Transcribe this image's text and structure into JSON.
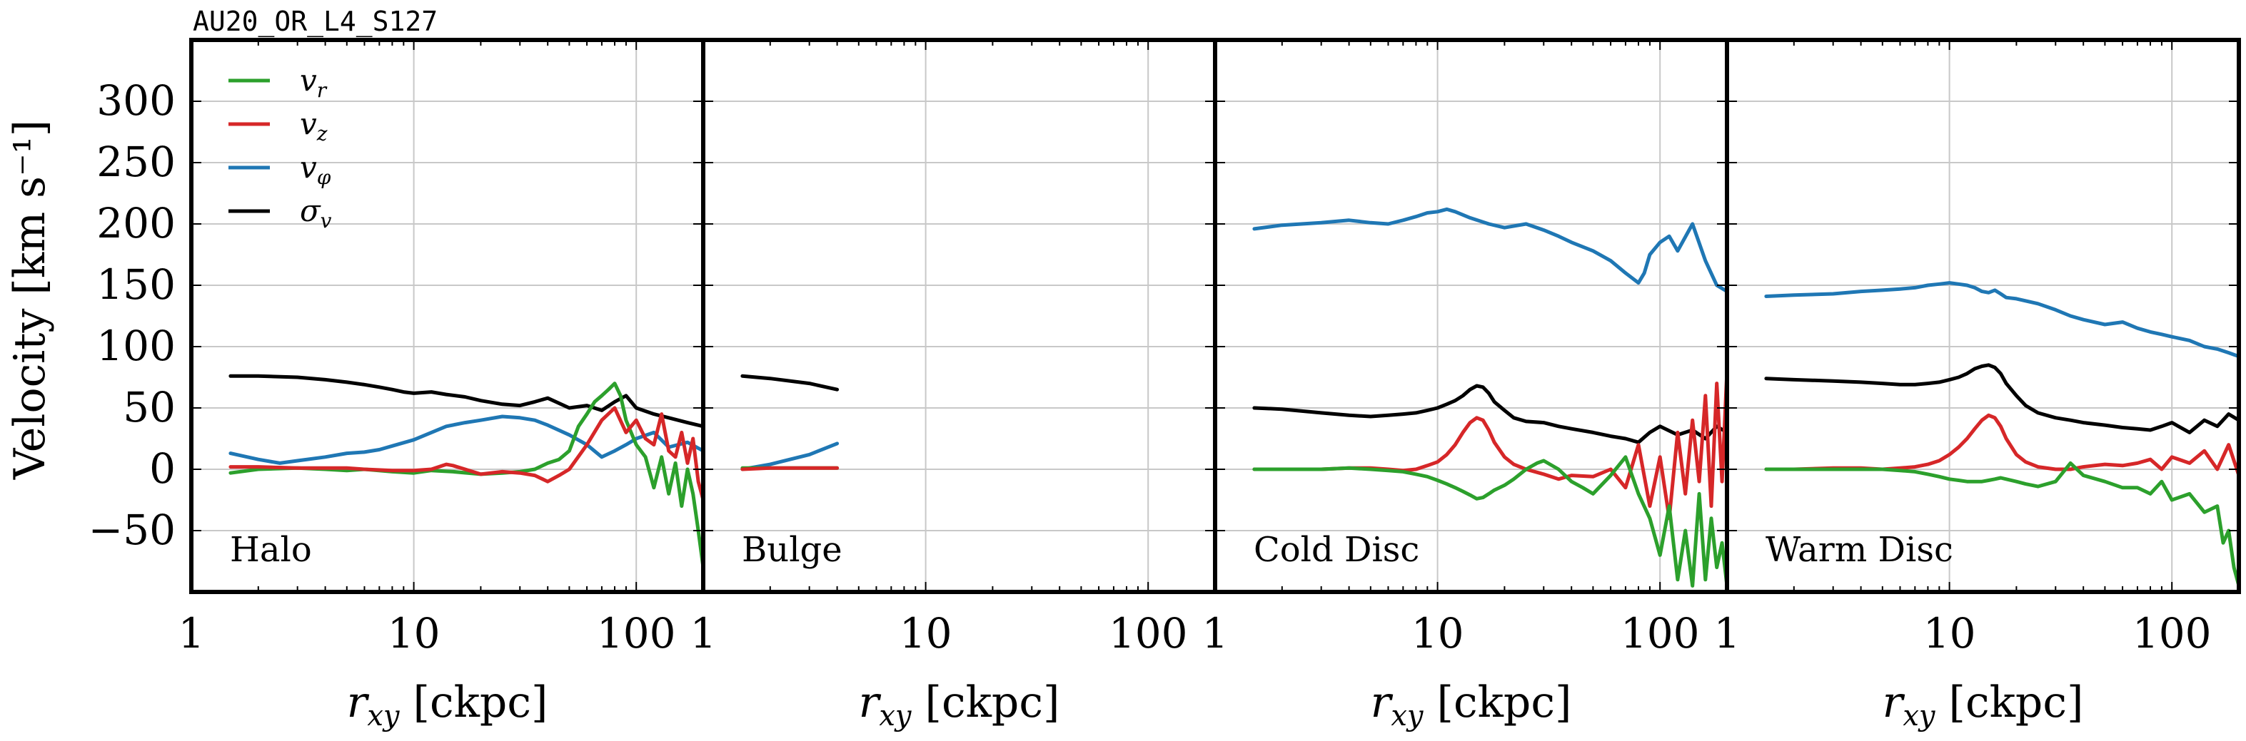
{
  "title": "AU20_OR_L4_S127",
  "colors": {
    "v_r": "#2ca02c",
    "v_z": "#d62728",
    "v_phi": "#1f77b4",
    "sigma_v": "#000000",
    "grid": "#c8c8c8"
  },
  "legend": [
    {
      "key": "v_r",
      "label": "v",
      "sub": "r"
    },
    {
      "key": "v_z",
      "label": "v",
      "sub": "z"
    },
    {
      "key": "v_phi",
      "label": "v",
      "sub": "φ"
    },
    {
      "key": "sigma_v",
      "label": "σ",
      "sub": "v"
    }
  ],
  "chart_data": {
    "type": "line",
    "ylabel": "Velocity [km s⁻¹]",
    "ylim": [
      -100,
      350
    ],
    "yticks": [
      -50,
      0,
      50,
      100,
      150,
      200,
      250,
      300
    ],
    "ytick_labels": [
      "−50",
      "0",
      "50",
      "100",
      "150",
      "200",
      "250",
      "300"
    ],
    "xscale": "log",
    "xlabel": "r_xy [ckpc]",
    "xlabel_main": "r",
    "xlabel_sub": "xy",
    "xlabel_unit": "[ckpc]",
    "grid": true,
    "legend_position": "top-left",
    "panels": [
      {
        "label": "Halo",
        "xlim": [
          1,
          200
        ],
        "xticks": [
          1,
          10,
          100
        ],
        "xtick_labels": [
          "1",
          "10",
          "100"
        ],
        "series": [
          {
            "key": "sigma_v",
            "x": [
              1.5,
              2,
              3,
              4,
              5,
              6,
              7,
              8,
              9,
              10,
              12,
              14,
              17,
              20,
              25,
              30,
              35,
              40,
              50,
              60,
              70,
              80,
              90,
              100,
              120,
              140,
              170,
              200
            ],
            "y": [
              76,
              76,
              75,
              73,
              71,
              69,
              67,
              65,
              63,
              62,
              63,
              61,
              59,
              56,
              53,
              52,
              55,
              58,
              50,
              52,
              48,
              55,
              60,
              50,
              45,
              42,
              38,
              35
            ]
          },
          {
            "key": "v_phi",
            "x": [
              1.5,
              2,
              2.5,
              3,
              4,
              5,
              6,
              7,
              8,
              10,
              12,
              14,
              17,
              20,
              25,
              30,
              35,
              40,
              50,
              60,
              70,
              80,
              90,
              100,
              120,
              140,
              170,
              200
            ],
            "y": [
              13,
              8,
              5,
              7,
              10,
              13,
              14,
              16,
              19,
              24,
              30,
              35,
              38,
              40,
              43,
              42,
              40,
              36,
              28,
              20,
              10,
              15,
              20,
              25,
              30,
              18,
              22,
              15
            ]
          },
          {
            "key": "v_r",
            "x": [
              1.5,
              2,
              3,
              4,
              5,
              6,
              8,
              10,
              12,
              15,
              20,
              25,
              30,
              35,
              40,
              45,
              50,
              55,
              60,
              65,
              70,
              75,
              80,
              85,
              90,
              100,
              110,
              120,
              130,
              140,
              150,
              160,
              170,
              180,
              190,
              200
            ],
            "y": [
              -3,
              0,
              1,
              0,
              -1,
              0,
              -2,
              -3,
              -1,
              -2,
              -4,
              -3,
              -2,
              0,
              5,
              8,
              15,
              35,
              45,
              55,
              60,
              65,
              70,
              60,
              40,
              20,
              10,
              -15,
              10,
              -20,
              5,
              -30,
              0,
              -20,
              -50,
              -80
            ]
          },
          {
            "key": "v_z",
            "x": [
              1.5,
              2,
              3,
              4,
              5,
              6,
              8,
              10,
              12,
              14,
              15,
              17,
              20,
              25,
              30,
              35,
              40,
              45,
              50,
              60,
              70,
              80,
              90,
              100,
              110,
              120,
              130,
              140,
              150,
              160,
              170,
              180,
              190,
              200
            ],
            "y": [
              2,
              2,
              1,
              1,
              1,
              0,
              -1,
              -1,
              0,
              4,
              3,
              0,
              -4,
              -2,
              -3,
              -5,
              -10,
              -5,
              0,
              20,
              40,
              50,
              30,
              40,
              25,
              20,
              45,
              15,
              10,
              30,
              5,
              25,
              -10,
              -25
            ]
          }
        ]
      },
      {
        "label": "Bulge",
        "xlim": [
          1,
          200
        ],
        "xticks": [
          1,
          10,
          100
        ],
        "xtick_labels": [
          "1",
          "10",
          "100"
        ],
        "series": [
          {
            "key": "sigma_v",
            "x": [
              1.5,
              2,
              3,
              4
            ],
            "y": [
              76,
              74,
              70,
              65
            ]
          },
          {
            "key": "v_phi",
            "x": [
              1.5,
              2,
              3,
              4
            ],
            "y": [
              0,
              4,
              12,
              21
            ]
          },
          {
            "key": "v_r",
            "x": [
              1.5,
              2,
              3,
              4
            ],
            "y": [
              1,
              1,
              1,
              1
            ]
          },
          {
            "key": "v_z",
            "x": [
              1.5,
              2,
              3,
              4
            ],
            "y": [
              0,
              1,
              1,
              1
            ]
          }
        ]
      },
      {
        "label": "Cold Disc",
        "xlim": [
          1,
          200
        ],
        "xticks": [
          1,
          10,
          100
        ],
        "xtick_labels": [
          "1",
          "10",
          "100"
        ],
        "series": [
          {
            "key": "v_phi",
            "x": [
              1.5,
              2,
              3,
              4,
              5,
              6,
              7,
              8,
              9,
              10,
              11,
              12,
              14,
              17,
              20,
              25,
              30,
              35,
              40,
              50,
              60,
              70,
              80,
              85,
              90,
              100,
              110,
              120,
              140,
              160,
              180,
              200
            ],
            "y": [
              196,
              199,
              201,
              203,
              201,
              200,
              203,
              206,
              209,
              210,
              212,
              210,
              205,
              200,
              197,
              200,
              195,
              190,
              185,
              178,
              170,
              160,
              152,
              160,
              175,
              185,
              190,
              178,
              200,
              170,
              150,
              145
            ]
          },
          {
            "key": "sigma_v",
            "x": [
              1.5,
              2,
              3,
              4,
              5,
              6,
              7,
              8,
              9,
              10,
              11,
              12,
              13,
              14,
              15,
              16,
              17,
              18,
              20,
              22,
              25,
              30,
              35,
              40,
              50,
              60,
              70,
              80,
              90,
              100,
              120,
              140,
              160,
              180,
              200
            ],
            "y": [
              50,
              49,
              46,
              44,
              43,
              44,
              45,
              46,
              48,
              50,
              53,
              56,
              60,
              65,
              68,
              67,
              62,
              55,
              48,
              42,
              39,
              38,
              35,
              33,
              30,
              27,
              25,
              22,
              30,
              35,
              28,
              32,
              25,
              35,
              30
            ]
          },
          {
            "key": "v_z",
            "x": [
              1.5,
              2,
              3,
              4,
              5,
              6,
              7,
              8,
              9,
              10,
              11,
              12,
              13,
              14,
              15,
              16,
              17,
              18,
              20,
              22,
              25,
              30,
              35,
              40,
              50,
              60,
              70,
              80,
              90,
              100,
              110,
              120,
              130,
              140,
              150,
              160,
              170,
              180,
              190,
              200
            ],
            "y": [
              0,
              0,
              0,
              1,
              1,
              0,
              -1,
              0,
              3,
              6,
              12,
              20,
              30,
              38,
              42,
              40,
              32,
              22,
              10,
              4,
              0,
              -4,
              -8,
              -5,
              -6,
              0,
              -15,
              20,
              -30,
              10,
              -40,
              30,
              -20,
              40,
              -10,
              60,
              -30,
              70,
              -10,
              80
            ]
          },
          {
            "key": "v_r",
            "x": [
              1.5,
              2,
              3,
              4,
              5,
              6,
              7,
              8,
              9,
              10,
              11,
              12,
              13,
              14,
              15,
              16,
              17,
              18,
              20,
              22,
              25,
              28,
              30,
              35,
              40,
              45,
              50,
              60,
              70,
              80,
              90,
              100,
              110,
              120,
              130,
              140,
              150,
              160,
              170,
              180,
              190,
              200
            ],
            "y": [
              0,
              0,
              0,
              1,
              0,
              -1,
              -2,
              -4,
              -6,
              -9,
              -12,
              -15,
              -18,
              -21,
              -24,
              -23,
              -20,
              -17,
              -13,
              -8,
              0,
              5,
              7,
              0,
              -10,
              -15,
              -20,
              -5,
              10,
              -20,
              -40,
              -70,
              -30,
              -90,
              -50,
              -95,
              -20,
              -90,
              -40,
              -80,
              -60,
              -95
            ]
          }
        ]
      },
      {
        "label": "Warm Disc",
        "xlim": [
          1,
          200
        ],
        "xticks": [
          1,
          10,
          100
        ],
        "xtick_labels": [
          "1",
          "10",
          "100"
        ],
        "series": [
          {
            "key": "v_phi",
            "x": [
              1.5,
              2,
              3,
              4,
              5,
              6,
              7,
              8,
              9,
              10,
              11,
              12,
              13,
              14,
              15,
              16,
              17,
              18,
              20,
              25,
              30,
              35,
              40,
              50,
              60,
              70,
              80,
              90,
              100,
              120,
              140,
              160,
              180,
              200
            ],
            "y": [
              141,
              142,
              143,
              145,
              146,
              147,
              148,
              150,
              151,
              152,
              151,
              150,
              148,
              145,
              144,
              146,
              143,
              140,
              139,
              135,
              130,
              125,
              122,
              118,
              120,
              115,
              112,
              110,
              108,
              105,
              100,
              98,
              95,
              92
            ]
          },
          {
            "key": "sigma_v",
            "x": [
              1.5,
              2,
              3,
              4,
              5,
              6,
              7,
              8,
              9,
              10,
              11,
              12,
              13,
              14,
              15,
              16,
              17,
              18,
              20,
              22,
              25,
              30,
              35,
              40,
              50,
              60,
              70,
              80,
              90,
              100,
              120,
              140,
              160,
              180,
              200
            ],
            "y": [
              74,
              73,
              72,
              71,
              70,
              69,
              69,
              70,
              71,
              73,
              75,
              78,
              82,
              84,
              85,
              83,
              78,
              70,
              60,
              52,
              46,
              42,
              40,
              38,
              36,
              34,
              33,
              32,
              35,
              38,
              30,
              40,
              35,
              45,
              40
            ]
          },
          {
            "key": "v_z",
            "x": [
              1.5,
              2,
              3,
              4,
              5,
              6,
              7,
              8,
              9,
              10,
              11,
              12,
              13,
              14,
              15,
              16,
              17,
              18,
              20,
              22,
              25,
              30,
              35,
              40,
              50,
              60,
              70,
              80,
              90,
              100,
              120,
              140,
              160,
              180,
              200
            ],
            "y": [
              0,
              0,
              1,
              1,
              0,
              1,
              2,
              4,
              7,
              12,
              18,
              25,
              33,
              40,
              44,
              42,
              35,
              25,
              12,
              6,
              2,
              0,
              0,
              2,
              4,
              3,
              5,
              8,
              0,
              10,
              5,
              15,
              0,
              20,
              -5
            ]
          },
          {
            "key": "v_r",
            "x": [
              1.5,
              2,
              3,
              4,
              5,
              6,
              7,
              8,
              9,
              10,
              11,
              12,
              13,
              14,
              15,
              16,
              17,
              18,
              20,
              22,
              25,
              30,
              35,
              40,
              50,
              60,
              70,
              80,
              90,
              100,
              120,
              140,
              160,
              170,
              180,
              190,
              200
            ],
            "y": [
              0,
              0,
              0,
              0,
              0,
              -1,
              -2,
              -4,
              -6,
              -8,
              -9,
              -10,
              -10,
              -10,
              -9,
              -8,
              -7,
              -8,
              -10,
              -12,
              -14,
              -10,
              5,
              -5,
              -10,
              -15,
              -15,
              -20,
              -10,
              -25,
              -20,
              -35,
              -30,
              -60,
              -50,
              -80,
              -95
            ]
          }
        ]
      }
    ]
  }
}
